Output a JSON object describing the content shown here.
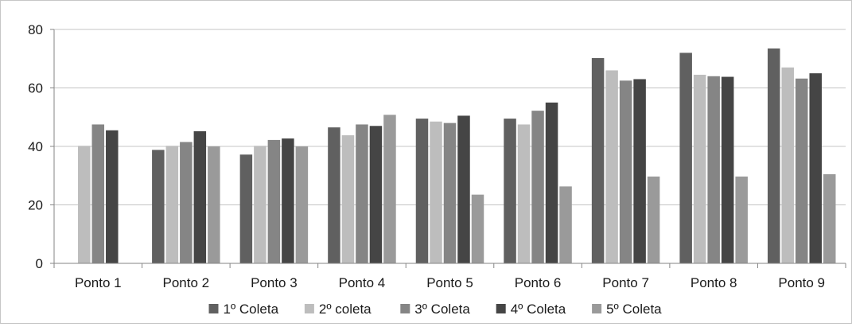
{
  "chart_data": {
    "type": "bar",
    "title": "",
    "xlabel": "",
    "ylabel": "",
    "ylim": [
      0,
      80
    ],
    "yticks": [
      0,
      20,
      40,
      60,
      80
    ],
    "grid": true,
    "legend_position": "bottom",
    "categories": [
      "Ponto 1",
      "Ponto 2",
      "Ponto 3",
      "Ponto 4",
      "Ponto 5",
      "Ponto 6",
      "Ponto 7",
      "Ponto 8",
      "Ponto 9"
    ],
    "series": [
      {
        "name": "1º Coleta",
        "color": "#606060",
        "values": [
          null,
          38.8,
          37.2,
          46.5,
          49.5,
          49.5,
          70.2,
          72.0,
          73.5
        ]
      },
      {
        "name": "2º coleta",
        "color": "#bdbdbd",
        "values": [
          40.2,
          40.2,
          40.2,
          43.8,
          48.5,
          47.5,
          66.0,
          64.5,
          67.0
        ]
      },
      {
        "name": "3º Coleta",
        "color": "#858585",
        "values": [
          47.5,
          41.5,
          42.2,
          47.5,
          48.0,
          52.2,
          62.5,
          64.0,
          63.2
        ]
      },
      {
        "name": "4º Coleta",
        "color": "#454545",
        "values": [
          45.5,
          45.2,
          42.7,
          47.0,
          50.5,
          55.0,
          63.0,
          63.8,
          65.0
        ]
      },
      {
        "name": "5º Coleta",
        "color": "#9a9a9a",
        "values": [
          null,
          40.0,
          40.0,
          50.8,
          23.5,
          26.3,
          29.7,
          29.7,
          30.5
        ]
      }
    ]
  }
}
